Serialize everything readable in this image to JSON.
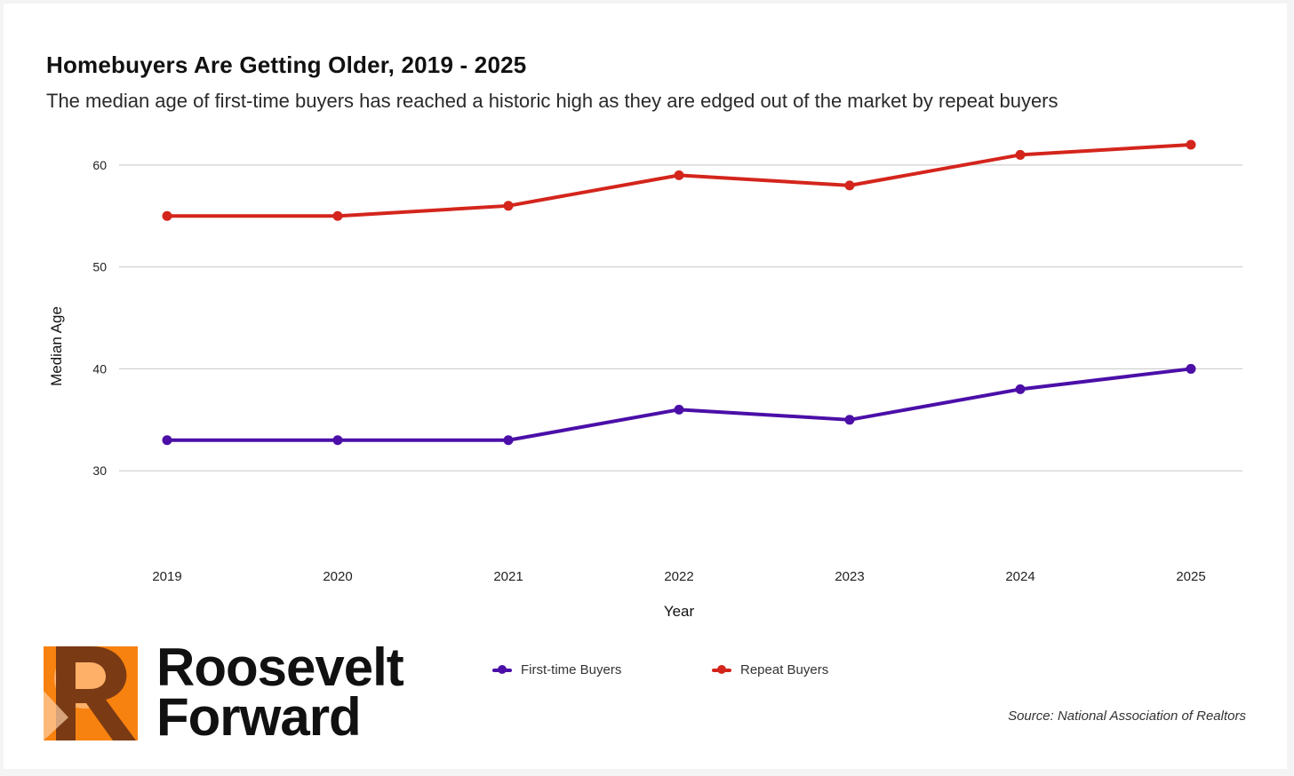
{
  "header": {
    "title": "Homebuyers Are Getting Older, 2019 - 2025",
    "subtitle": "The median age of first-time buyers has reached a historic high as they are edged out of the market by repeat buyers"
  },
  "chart_data": {
    "type": "line",
    "title": "Homebuyers Are Getting Older, 2019 - 2025",
    "subtitle": "The median age of first-time buyers has reached a historic high as they are edged out of the market by repeat buyers",
    "xlabel": "Year",
    "ylabel": "Median Age",
    "x": [
      "2019",
      "2020",
      "2021",
      "2022",
      "2023",
      "2024",
      "2025"
    ],
    "yticks": [
      30,
      40,
      50,
      60
    ],
    "ylim": [
      22,
      64
    ],
    "grid": true,
    "legend_position": "bottom-center",
    "series": [
      {
        "name": "First-time Buyers",
        "color": "#4b0fa8",
        "values": [
          33,
          33,
          33,
          36,
          35,
          38,
          40
        ]
      },
      {
        "name": "Repeat Buyers",
        "color": "#d4251c",
        "values": [
          55,
          55,
          56,
          59,
          58,
          61,
          62
        ]
      }
    ]
  },
  "legend": {
    "items": [
      {
        "label": "First-time Buyers",
        "color": "#4b0fa8"
      },
      {
        "label": "Repeat Buyers",
        "color": "#d4251c"
      }
    ]
  },
  "source": "Source: National Association of Realtors",
  "brand": {
    "line1": "Roosevelt",
    "line2": "Forward",
    "logo_letter": "R",
    "logo_color": "#f7820f"
  }
}
